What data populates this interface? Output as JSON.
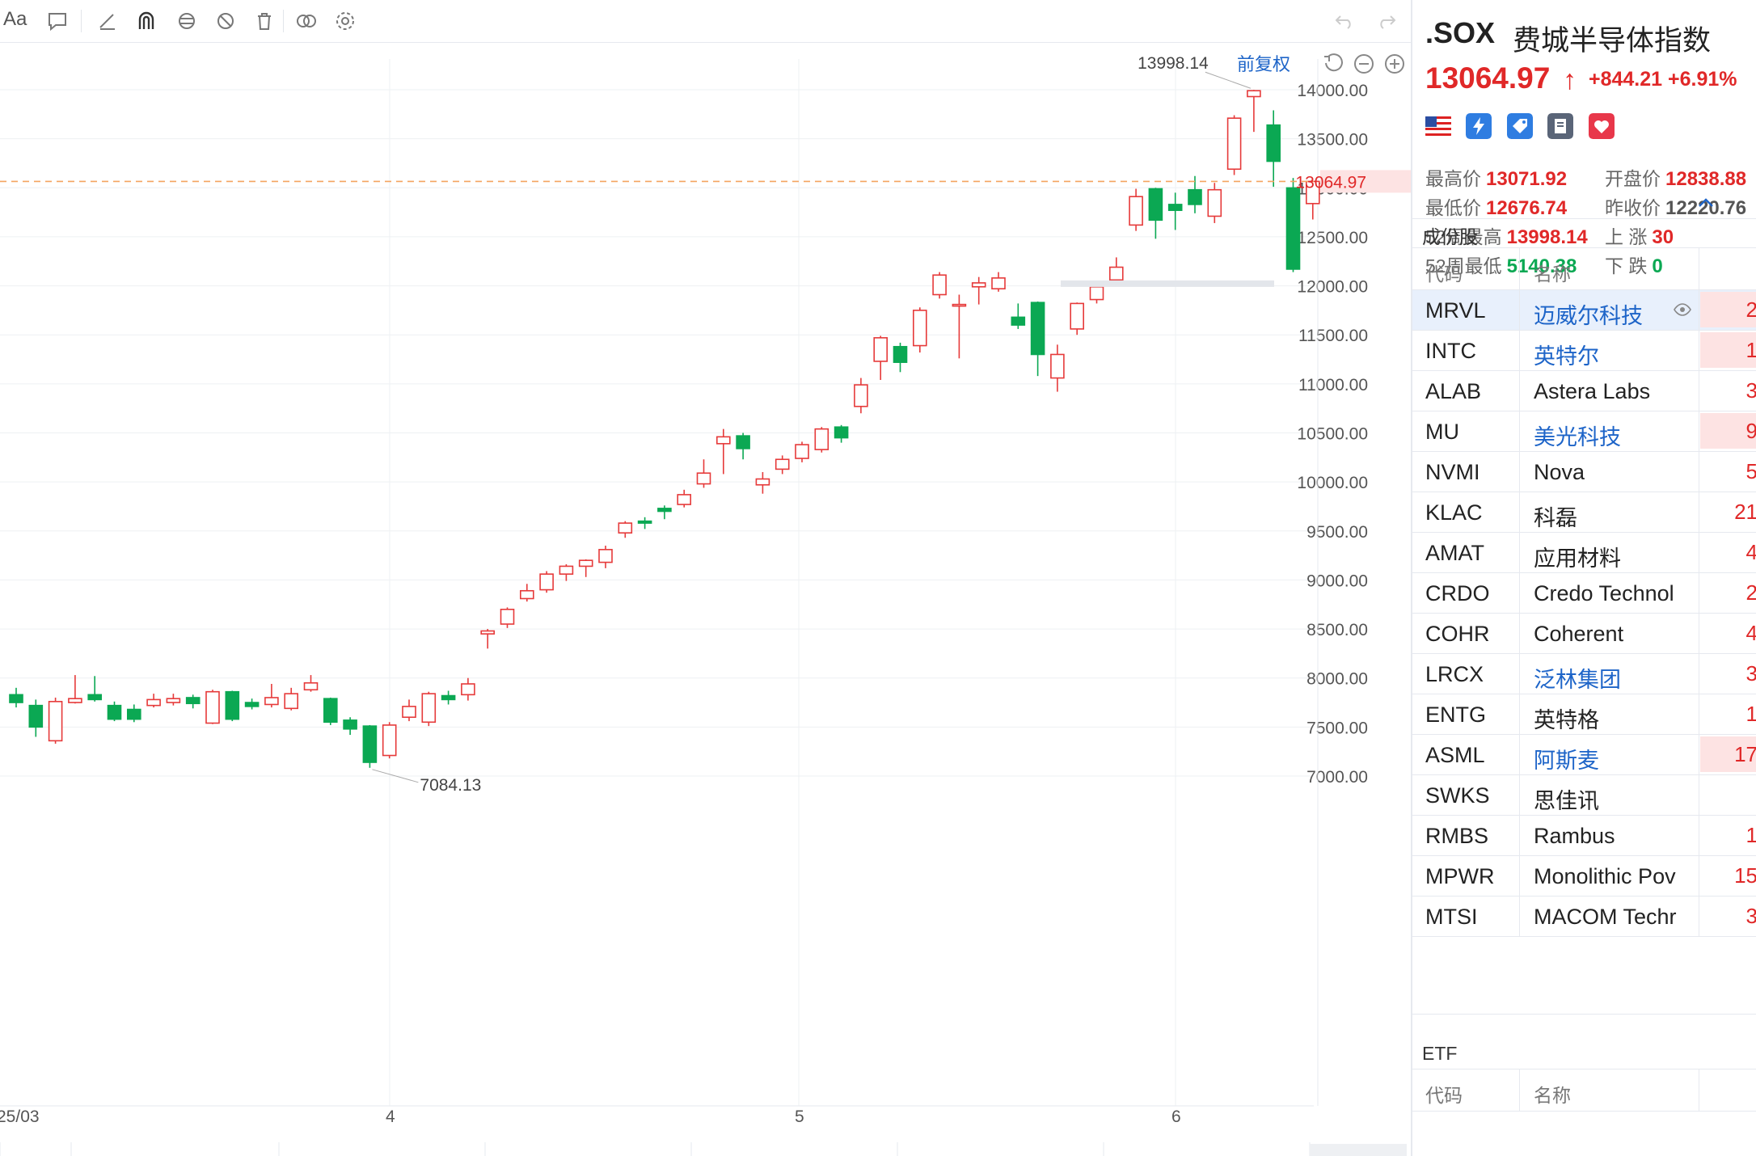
{
  "toolbar": {
    "font_label": "Aa",
    "icons": [
      "text-icon",
      "comment-icon",
      "line-draw-icon",
      "magnet-icon",
      "sync-icon",
      "hide-icon",
      "trash-icon",
      "compare-icon",
      "settings-icon",
      "undo-icon",
      "redo-icon"
    ]
  },
  "chart": {
    "adjust_label": "前复权",
    "y_ticks": [
      "14000.00",
      "13500.00",
      "13000.00",
      "12500.00",
      "12000.00",
      "11500.00",
      "11000.00",
      "10500.00",
      "10000.00",
      "9500.00",
      "9000.00",
      "8500.00",
      "8000.00",
      "7500.00",
      "7000.00"
    ],
    "x_ticks": [
      "25/03",
      "4",
      "5",
      "6"
    ],
    "current_price_label": "13064.97",
    "high_label": "13998.14",
    "low_label": "7084.13",
    "colors": {
      "up": "#e63a3a",
      "down": "#0ba853",
      "current_line": "#f4a460"
    }
  },
  "chart_data": {
    "type": "candlestick",
    "ylim": [
      6700,
      14300
    ],
    "current_price": 13064.97,
    "period_high": 13998.14,
    "period_low": 7084.13,
    "candles": [
      {
        "o": 7830,
        "c": 7750,
        "h": 7900,
        "l": 7700
      },
      {
        "o": 7720,
        "c": 7500,
        "h": 7780,
        "l": 7400
      },
      {
        "o": 7360,
        "c": 7760,
        "h": 7800,
        "l": 7330
      },
      {
        "o": 7750,
        "c": 7790,
        "h": 8030,
        "l": 7740
      },
      {
        "o": 7830,
        "c": 7780,
        "h": 8020,
        "l": 7760
      },
      {
        "o": 7720,
        "c": 7580,
        "h": 7760,
        "l": 7560
      },
      {
        "o": 7680,
        "c": 7580,
        "h": 7730,
        "l": 7550
      },
      {
        "o": 7720,
        "c": 7780,
        "h": 7840,
        "l": 7700
      },
      {
        "o": 7750,
        "c": 7790,
        "h": 7840,
        "l": 7720
      },
      {
        "o": 7800,
        "c": 7740,
        "h": 7830,
        "l": 7690
      },
      {
        "o": 7540,
        "c": 7860,
        "h": 7880,
        "l": 7530
      },
      {
        "o": 7860,
        "c": 7580,
        "h": 7870,
        "l": 7560
      },
      {
        "o": 7750,
        "c": 7710,
        "h": 7790,
        "l": 7680
      },
      {
        "o": 7730,
        "c": 7800,
        "h": 7940,
        "l": 7700
      },
      {
        "o": 7690,
        "c": 7840,
        "h": 7900,
        "l": 7670
      },
      {
        "o": 7880,
        "c": 7950,
        "h": 8030,
        "l": 7860
      },
      {
        "o": 7790,
        "c": 7550,
        "h": 7800,
        "l": 7520
      },
      {
        "o": 7570,
        "c": 7480,
        "h": 7600,
        "l": 7420
      },
      {
        "o": 7510,
        "c": 7140,
        "h": 7520,
        "l": 7084.13
      },
      {
        "o": 7210,
        "c": 7520,
        "h": 7550,
        "l": 7180
      },
      {
        "o": 7600,
        "c": 7710,
        "h": 7780,
        "l": 7560
      },
      {
        "o": 7550,
        "c": 7840,
        "h": 7860,
        "l": 7510
      },
      {
        "o": 7820,
        "c": 7780,
        "h": 7870,
        "l": 7730
      },
      {
        "o": 7830,
        "c": 7940,
        "h": 8000,
        "l": 7770
      },
      {
        "o": 8450,
        "c": 8480,
        "h": 8500,
        "l": 8300
      },
      {
        "o": 8550,
        "c": 8700,
        "h": 8720,
        "l": 8510
      },
      {
        "o": 8810,
        "c": 8890,
        "h": 8960,
        "l": 8780
      },
      {
        "o": 8900,
        "c": 9060,
        "h": 9090,
        "l": 8870
      },
      {
        "o": 9060,
        "c": 9140,
        "h": 9160,
        "l": 8990
      },
      {
        "o": 9140,
        "c": 9200,
        "h": 9210,
        "l": 9030
      },
      {
        "o": 9180,
        "c": 9310,
        "h": 9350,
        "l": 9120
      },
      {
        "o": 9480,
        "c": 9580,
        "h": 9600,
        "l": 9430
      },
      {
        "o": 9600,
        "c": 9580,
        "h": 9640,
        "l": 9520
      },
      {
        "o": 9730,
        "c": 9700,
        "h": 9760,
        "l": 9620
      },
      {
        "o": 9770,
        "c": 9870,
        "h": 9920,
        "l": 9740
      },
      {
        "o": 9980,
        "c": 10090,
        "h": 10230,
        "l": 9940
      },
      {
        "o": 10390,
        "c": 10460,
        "h": 10540,
        "l": 10080
      },
      {
        "o": 10470,
        "c": 10340,
        "h": 10500,
        "l": 10230
      },
      {
        "o": 9970,
        "c": 10030,
        "h": 10100,
        "l": 9880
      },
      {
        "o": 10130,
        "c": 10230,
        "h": 10270,
        "l": 10080
      },
      {
        "o": 10240,
        "c": 10380,
        "h": 10410,
        "l": 10200
      },
      {
        "o": 10330,
        "c": 10540,
        "h": 10560,
        "l": 10300
      },
      {
        "o": 10560,
        "c": 10450,
        "h": 10580,
        "l": 10400
      },
      {
        "o": 10770,
        "c": 10990,
        "h": 11060,
        "l": 10700
      },
      {
        "o": 11230,
        "c": 11470,
        "h": 11490,
        "l": 11040
      },
      {
        "o": 11380,
        "c": 11220,
        "h": 11420,
        "l": 11120
      },
      {
        "o": 11390,
        "c": 11750,
        "h": 11780,
        "l": 11320
      },
      {
        "o": 11910,
        "c": 12110,
        "h": 12140,
        "l": 11870
      },
      {
        "o": 11810,
        "c": 11810,
        "h": 11910,
        "l": 11260
      },
      {
        "o": 11990,
        "c": 12030,
        "h": 12090,
        "l": 11810
      },
      {
        "o": 11970,
        "c": 12080,
        "h": 12140,
        "l": 11940
      },
      {
        "o": 11680,
        "c": 11600,
        "h": 11820,
        "l": 11560
      },
      {
        "o": 11830,
        "c": 11300,
        "h": 11840,
        "l": 11080
      },
      {
        "o": 11060,
        "c": 11300,
        "h": 11400,
        "l": 10920
      },
      {
        "o": 11560,
        "c": 11820,
        "h": 11830,
        "l": 11500
      },
      {
        "o": 11860,
        "c": 11990,
        "h": 12010,
        "l": 11820
      },
      {
        "o": 12060,
        "c": 12190,
        "h": 12290,
        "l": 12040
      },
      {
        "o": 12620,
        "c": 12910,
        "h": 12990,
        "l": 12560
      },
      {
        "o": 12990,
        "c": 12670,
        "h": 13000,
        "l": 12480
      },
      {
        "o": 12830,
        "c": 12770,
        "h": 12950,
        "l": 12570
      },
      {
        "o": 12980,
        "c": 12830,
        "h": 13120,
        "l": 12740
      },
      {
        "o": 12710,
        "c": 12980,
        "h": 13050,
        "l": 12640
      },
      {
        "o": 13190,
        "c": 13710,
        "h": 13740,
        "l": 13130
      },
      {
        "o": 13930,
        "c": 13990,
        "h": 13998.14,
        "l": 13570
      },
      {
        "o": 13640,
        "c": 13270,
        "h": 13790,
        "l": 13010
      },
      {
        "o": 12999,
        "c": 12170,
        "h": 13100,
        "l": 12140
      },
      {
        "o": 12838.88,
        "c": 13064.97,
        "h": 13071.92,
        "l": 12676.74
      }
    ]
  },
  "quote": {
    "symbol": ".SOX",
    "name": "费城半导体指数",
    "price": "13064.97",
    "arrow": "↑",
    "change": "+844.21 +6.91%",
    "badges": [
      "us-flag-icon",
      "margin-icon",
      "tag-icon",
      "notes-icon",
      "favorite-icon"
    ],
    "stats": [
      [
        {
          "label": "最高价",
          "value": "13071.92",
          "color": "#e02828"
        },
        {
          "label": "开盘价",
          "value": "12838.88",
          "color": "#e02828"
        }
      ],
      [
        {
          "label": "最低价",
          "value": "12676.74",
          "color": "#e02828"
        },
        {
          "label": "昨收价",
          "value": "12220.76",
          "color": "#555555"
        }
      ],
      [
        {
          "label": "52周最高",
          "value": "13998.14",
          "color": "#e02828"
        },
        {
          "label": "上 涨",
          "value": "30",
          "color": "#e02828"
        }
      ],
      [
        {
          "label": "52周最低",
          "value": "5140.38",
          "color": "#0ba853"
        },
        {
          "label": "下 跌",
          "value": "0",
          "color": "#0ba853"
        }
      ]
    ],
    "collapse_icon": "chevron-up-icon"
  },
  "constituents": {
    "title": "成份股",
    "col_code": "代码",
    "col_name": "名称",
    "rows": [
      {
        "code": "MRVL",
        "name": "迈威尔科技",
        "link": true,
        "val": "2",
        "hl": true
      },
      {
        "code": "INTC",
        "name": "英特尔",
        "link": true,
        "val": "1",
        "hl": true
      },
      {
        "code": "ALAB",
        "name": "Astera Labs",
        "link": false,
        "val": "3",
        "hl": false
      },
      {
        "code": "MU",
        "name": "美光科技",
        "link": true,
        "val": "9",
        "hl": true
      },
      {
        "code": "NVMI",
        "name": "Nova",
        "link": false,
        "val": "5",
        "hl": false
      },
      {
        "code": "KLAC",
        "name": "科磊",
        "link": false,
        "val": "21",
        "hl": false
      },
      {
        "code": "AMAT",
        "name": "应用材料",
        "link": false,
        "val": "4",
        "hl": false
      },
      {
        "code": "CRDO",
        "name": "Credo Technol",
        "link": false,
        "val": "2",
        "hl": false
      },
      {
        "code": "COHR",
        "name": "Coherent",
        "link": false,
        "val": "4",
        "hl": false
      },
      {
        "code": "LRCX",
        "name": "泛林集团",
        "link": true,
        "val": "3",
        "hl": false
      },
      {
        "code": "ENTG",
        "name": "英特格",
        "link": false,
        "val": "1",
        "hl": false
      },
      {
        "code": "ASML",
        "name": "阿斯麦",
        "link": true,
        "val": "17",
        "hl": true
      },
      {
        "code": "SWKS",
        "name": "思佳讯",
        "link": false,
        "val": "",
        "hl": false
      },
      {
        "code": "RMBS",
        "name": "Rambus",
        "link": false,
        "val": "1",
        "hl": false
      },
      {
        "code": "MPWR",
        "name": "Monolithic Pov",
        "link": false,
        "val": "15",
        "hl": false
      },
      {
        "code": "MTSI",
        "name": "MACOM Techr",
        "link": false,
        "val": "3",
        "hl": false
      }
    ]
  },
  "etf": {
    "title": "ETF",
    "col_code": "代码",
    "col_name": "名称"
  }
}
